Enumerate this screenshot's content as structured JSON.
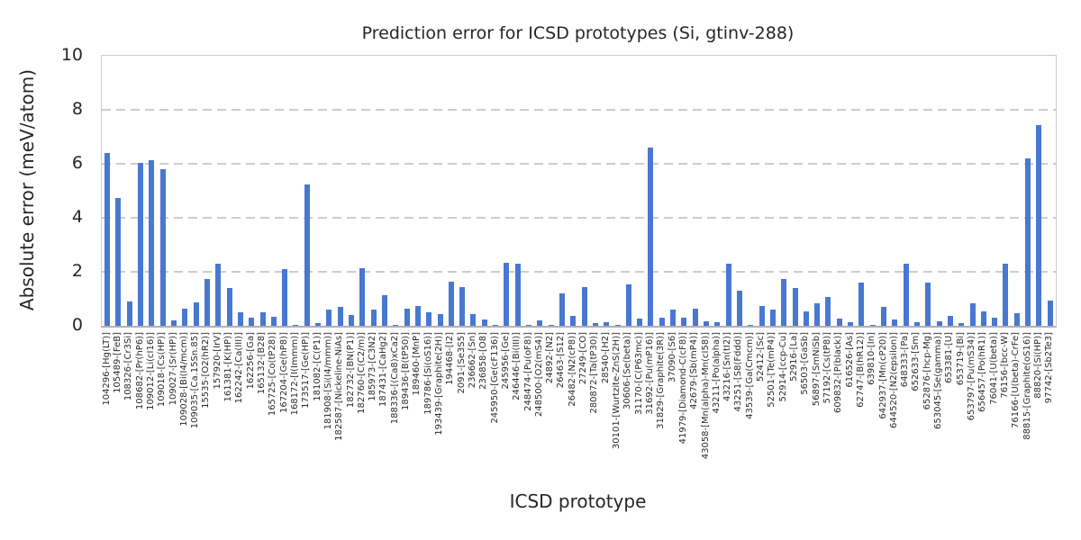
{
  "chart_data": {
    "type": "bar",
    "title": "Prediction error for ICSD prototypes (Si, gtinv-288)",
    "xlabel": "ICSD prototype",
    "ylabel": "Absolute error (meV/atom)",
    "ylim": [
      0,
      10
    ],
    "yticks": [
      0,
      2,
      4,
      6,
      8,
      10
    ],
    "grid": "horizontal-dashed",
    "legend": "none",
    "bar_color": "#4878d0",
    "categories": [
      "104296-[Hg(LT)]",
      "105489-[FeB]",
      "108326-[Cr3Si]",
      "108682-[Pr(hP6)]",
      "109012-[Li(cI16)]",
      "109018-[Cs(HP)]",
      "109027-[Sr(HP)]",
      "109028-[Bi(I4/mcm)]",
      "109035-[Ca.15Sn.85]",
      "15535-[O2(hR2)]",
      "157920-[IrV]",
      "161381-[K(HP)]",
      "162242-[Ca(III)]",
      "162256-[Ga]",
      "165132-[B28]",
      "165725-[Co(tP28)]",
      "167204-[Ge(hP8)]",
      "168172-[I(Immm)]",
      "173517-[Ge(HP)]",
      "181082-[C(P1)]",
      "181908-[Si(I4/mmm)]",
      "182587-[Nickeline-NiAs]",
      "182732-[BN(P1)]",
      "182760-[C(C2/m)]",
      "185973-[C3N2]",
      "187431-[CaHg2]",
      "188336-[(Ca8)xCa2]",
      "189436-[B(tP50)]",
      "189460-[MnP]",
      "189786-[Si(oS16)]",
      "193439-[Graphite(2H)]",
      "194468-[I2]",
      "2091-[Se3S5]",
      "236662-[Sn]",
      "236858-[O8]",
      "245950-[Ge(cF136)]",
      "245956-[Ge]",
      "246446-[Bi(III)]",
      "248474-[Pu(oF8)]",
      "248500-[O2(mS4)]",
      "24892-[N2]",
      "26463-[S12]",
      "26482-[N2(cP8)]",
      "27249-[CO]",
      "280872-[Ta(tP30)]",
      "28540-[H2]",
      "30101-[Wurtzite-ZnS(2H)]",
      "30606-[Se(beta)]",
      "31170-[C(P63mc)]",
      "31692-[Pu(mP16)]",
      "31829-[Graphite(3R)]",
      "37090-[S6]",
      "41979-[Diamond-C(cF8)]",
      "42679-[Sb(mP4)]",
      "43058-[Mn(alpha)-Mn(cI58)]",
      "43211-[Po(alpha)]",
      "43216-[Sn(tI2)]",
      "43251-[S8(Fddd)]",
      "43539-[Ga(Cmcm)]",
      "52412-[Sc]",
      "52501-[Te(mP4)]",
      "52914-[ccp-Cu]",
      "52916-[La]",
      "56503-[GaSb]",
      "56897-[SmNiSb]",
      "57192-[Cs(tP8)]",
      "609832-[P(black)]",
      "616526-[As]",
      "62747-[B(hR12)]",
      "639810-[In]",
      "642937-[Mn(cP20)]",
      "644520-[N2(epsilon)]",
      "648333-[Pa]",
      "652633-[Sm]",
      "652876-[hcp-Mg]",
      "653045-[Se(gamma)]",
      "653381-[U]",
      "653719-[Bi]",
      "653797-[Pu(mS34)]",
      "656457-[Po(hR1)]",
      "76041-[U(beta)]",
      "76156-[bcc-W]",
      "76166-[U(beta)-CrFe]",
      "88815-[Graphite(oS16)]",
      "88820-[Si(HP)]",
      "97742-[Sb2Te3]"
    ],
    "values": [
      6.4,
      4.75,
      0.9,
      6.05,
      6.15,
      5.8,
      0.2,
      0.63,
      0.87,
      1.73,
      2.3,
      1.4,
      0.5,
      0.3,
      0.5,
      0.35,
      2.1,
      0.05,
      5.25,
      0.1,
      0.6,
      0.7,
      0.4,
      2.15,
      0.6,
      1.15,
      0.05,
      0.65,
      0.75,
      0.5,
      0.42,
      1.65,
      1.45,
      0.45,
      0.25,
      0.03,
      2.35,
      2.3,
      0.03,
      0.2,
      0.03,
      1.2,
      0.37,
      1.45,
      0.1,
      0.15,
      0.03,
      1.55,
      0.27,
      6.6,
      0.3,
      0.6,
      0.3,
      0.65,
      0.17,
      0.12,
      2.3,
      1.3,
      0.03,
      0.73,
      0.6,
      1.75,
      1.4,
      0.53,
      0.85,
      1.07,
      0.28,
      0.13,
      1.6,
      0.03,
      0.7,
      0.23,
      2.3,
      0.15,
      1.6,
      0.17,
      0.37,
      0.11,
      0.85,
      0.55,
      0.29,
      2.3,
      0.48,
      6.2,
      7.45,
      0.95
    ]
  },
  "colors": {
    "bar": "#4878d0",
    "grid": "#cdcdcd",
    "spine": "#cccccc",
    "axis_bottom": "#b0b0b0",
    "text": "#262626",
    "background": "#ffffff"
  }
}
